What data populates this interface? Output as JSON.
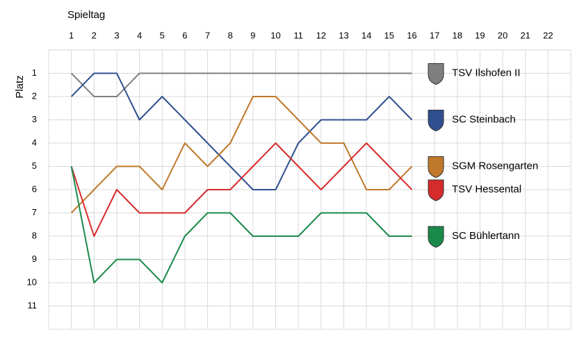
{
  "chart_data": {
    "type": "line",
    "x_label": "Spieltag",
    "y_label": "Platz",
    "x": [
      1,
      2,
      3,
      4,
      5,
      6,
      7,
      8,
      9,
      10,
      11,
      12,
      13,
      14,
      15,
      16,
      17,
      18,
      19,
      20,
      21,
      22
    ],
    "xlim": [
      0,
      23
    ],
    "xticks": [
      1,
      2,
      3,
      4,
      5,
      6,
      7,
      8,
      9,
      10,
      11,
      12,
      13,
      14,
      15,
      16,
      17,
      18,
      19,
      20,
      21,
      22
    ],
    "ylim": [
      0,
      12
    ],
    "yticks": [
      1,
      2,
      3,
      4,
      5,
      6,
      7,
      8,
      9,
      10,
      11
    ],
    "y_inverted": true,
    "x_axis_position": "top",
    "grid": true,
    "series": [
      {
        "name": "TSV Ilshofen II",
        "color": "#7f7f7f",
        "values": [
          1,
          2,
          2,
          1,
          1,
          1,
          1,
          1,
          1,
          1,
          1,
          1,
          1,
          1,
          1,
          1,
          null,
          null,
          null,
          null,
          null,
          null
        ]
      },
      {
        "name": "SC Steinbach",
        "color": "#2f4f8f",
        "values": [
          2,
          1,
          1,
          3,
          2,
          3,
          4,
          5,
          6,
          6,
          4,
          3,
          3,
          3,
          2,
          3,
          null,
          null,
          null,
          null,
          null,
          null
        ]
      },
      {
        "name": "SGM Rosengarten",
        "color": "#c0782a",
        "values": [
          7,
          6,
          5,
          5,
          6,
          4,
          5,
          4,
          2,
          2,
          3,
          4,
          4,
          6,
          6,
          5,
          null,
          null,
          null,
          null,
          null,
          null
        ]
      },
      {
        "name": "TSV Hessental",
        "color": "#d62b2b",
        "values": [
          5,
          8,
          6,
          7,
          7,
          7,
          6,
          6,
          5,
          4,
          5,
          6,
          5,
          4,
          5,
          6,
          null,
          null,
          null,
          null,
          null,
          null
        ]
      },
      {
        "name": "SC Bühlertann",
        "color": "#1a8a4a",
        "values": [
          5,
          10,
          9,
          9,
          10,
          8,
          7,
          7,
          8,
          8,
          8,
          7,
          7,
          7,
          8,
          8,
          null,
          null,
          null,
          null,
          null,
          null
        ]
      }
    ]
  }
}
